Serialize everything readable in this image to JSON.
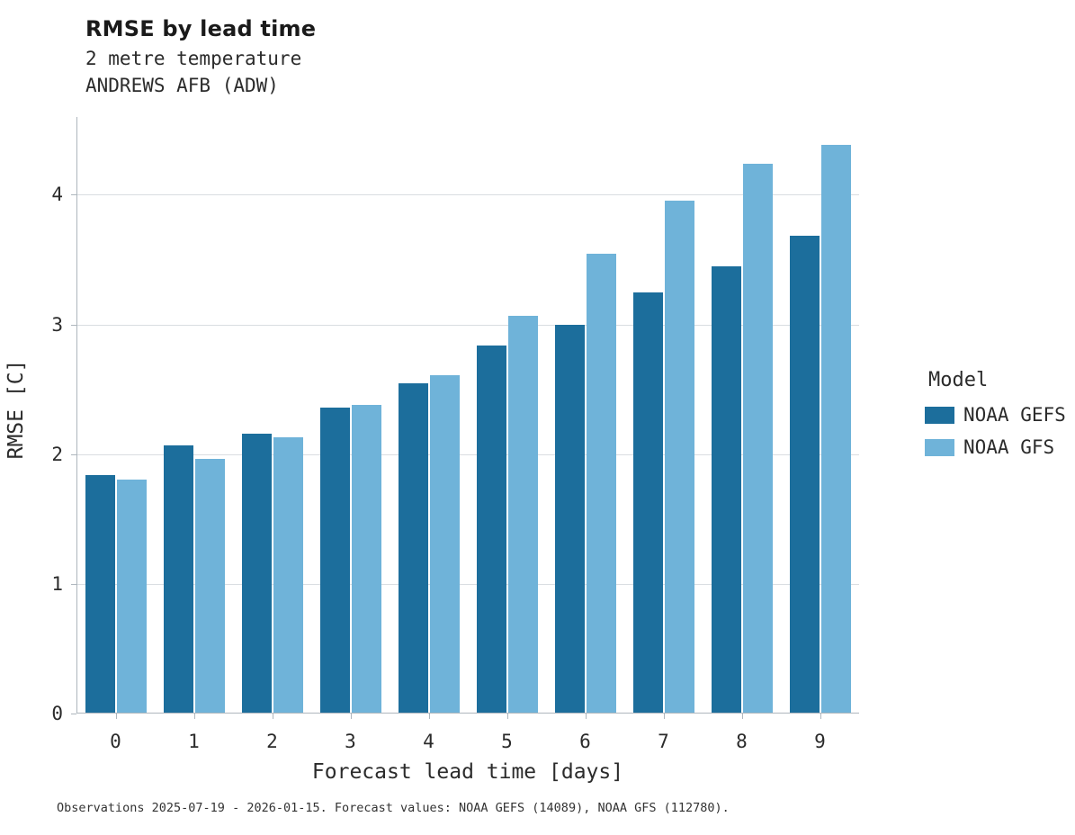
{
  "header": {
    "title": "RMSE by lead time",
    "subtitle1": "2 metre temperature",
    "subtitle2": "ANDREWS AFB (ADW)"
  },
  "legend": {
    "title": "Model",
    "items": [
      {
        "label": "NOAA GEFS",
        "color": "#1c6e9c"
      },
      {
        "label": "NOAA GFS",
        "color": "#6fb3d9"
      }
    ]
  },
  "caption": "Observations 2025-07-19 - 2026-01-15. Forecast values: NOAA GEFS (14089), NOAA GFS (112780).",
  "chart_data": {
    "type": "bar",
    "title": "RMSE by lead time",
    "subtitle": [
      "2 metre temperature",
      "ANDREWS AFB (ADW)"
    ],
    "xlabel": "Forecast lead time [days]",
    "ylabel": "RMSE [C]",
    "categories": [
      "0",
      "1",
      "2",
      "3",
      "4",
      "5",
      "6",
      "7",
      "8",
      "9"
    ],
    "series": [
      {
        "name": "NOAA GEFS",
        "color": "#1c6e9c",
        "values": [
          1.83,
          2.06,
          2.15,
          2.35,
          2.54,
          2.83,
          2.99,
          3.24,
          3.44,
          3.68
        ]
      },
      {
        "name": "NOAA GFS",
        "color": "#6fb3d9",
        "values": [
          1.8,
          1.96,
          2.12,
          2.37,
          2.6,
          3.06,
          3.54,
          3.95,
          4.23,
          4.38
        ]
      }
    ],
    "ylim": [
      0,
      4.6
    ],
    "yticks": [
      0,
      1,
      2,
      3,
      4
    ],
    "grid": true,
    "legend_position": "right",
    "legend_title": "Model"
  }
}
